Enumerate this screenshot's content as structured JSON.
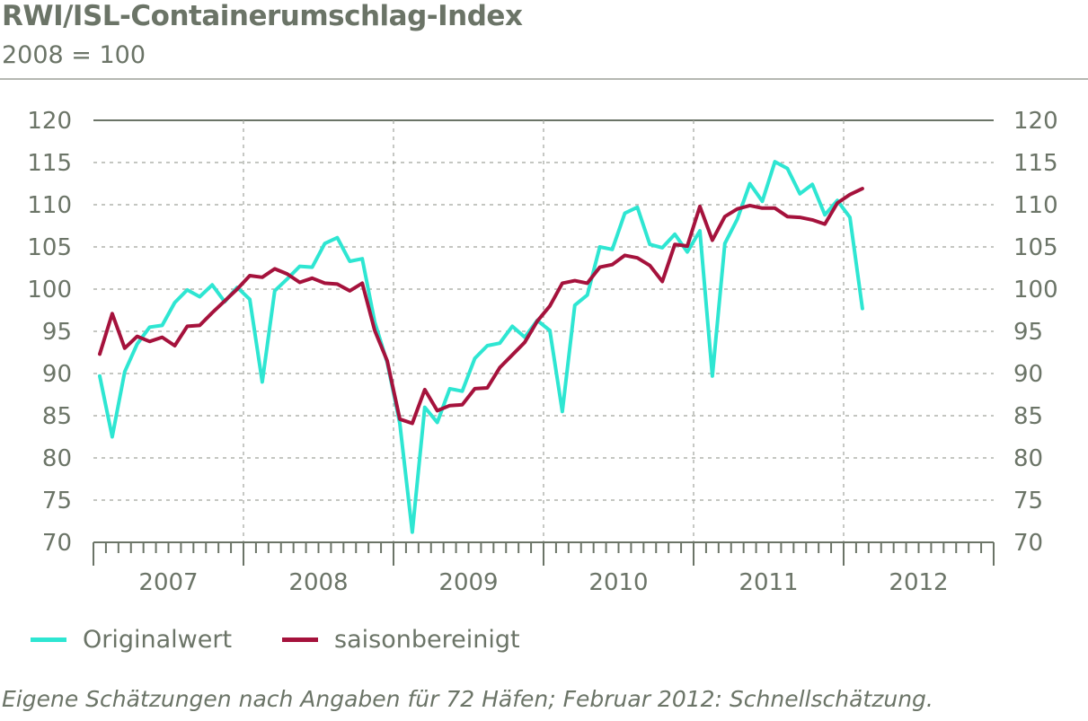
{
  "header": {
    "title": "RWI/ISL-Containerumschlag-Index",
    "subtitle": "2008 = 100"
  },
  "footnote": "Eigene Schätzungen nach Angaben für 72 Häfen; Februar 2012: Schnellschätzung.",
  "colors": {
    "original": "#2ee6d2",
    "saisonbereinigt": "#a5123c",
    "text": "#6b7467",
    "axis": "#6b7467",
    "grid": "#a0a39c"
  },
  "chart_data": {
    "type": "line",
    "title": "RWI/ISL-Containerumschlag-Index",
    "subtitle": "2008 = 100",
    "xlabel": "",
    "ylabel": "",
    "ylim": [
      70,
      120
    ],
    "yticks": [
      70,
      75,
      80,
      85,
      90,
      95,
      100,
      105,
      110,
      115,
      120
    ],
    "year_labels": [
      "2007",
      "2008",
      "2009",
      "2010",
      "2011",
      "2012"
    ],
    "x_range": [
      "2007-01",
      "2012-12"
    ],
    "x": [
      "2007-01",
      "2007-02",
      "2007-03",
      "2007-04",
      "2007-05",
      "2007-06",
      "2007-07",
      "2007-08",
      "2007-09",
      "2007-10",
      "2007-11",
      "2007-12",
      "2008-01",
      "2008-02",
      "2008-03",
      "2008-04",
      "2008-05",
      "2008-06",
      "2008-07",
      "2008-08",
      "2008-09",
      "2008-10",
      "2008-11",
      "2008-12",
      "2009-01",
      "2009-02",
      "2009-03",
      "2009-04",
      "2009-05",
      "2009-06",
      "2009-07",
      "2009-08",
      "2009-09",
      "2009-10",
      "2009-11",
      "2009-12",
      "2010-01",
      "2010-02",
      "2010-03",
      "2010-04",
      "2010-05",
      "2010-06",
      "2010-07",
      "2010-08",
      "2010-09",
      "2010-10",
      "2010-11",
      "2010-12",
      "2011-01",
      "2011-02",
      "2011-03",
      "2011-04",
      "2011-05",
      "2011-06",
      "2011-07",
      "2011-08",
      "2011-09",
      "2011-10",
      "2011-11",
      "2011-12",
      "2012-01",
      "2012-02"
    ],
    "grid": "dashed",
    "legend_position": "bottom-left",
    "series": [
      {
        "name": "Originalwert",
        "color": "#2ee6d2",
        "values": [
          89.7,
          82.5,
          90.2,
          93.5,
          95.5,
          95.7,
          98.4,
          99.9,
          99.1,
          100.5,
          98.5,
          100.2,
          98.8,
          89.0,
          99.8,
          101.2,
          102.7,
          102.6,
          105.4,
          106.1,
          103.3,
          103.6,
          96.1,
          91.3,
          84.1,
          71.2,
          86.0,
          84.2,
          88.2,
          87.9,
          91.8,
          93.3,
          93.6,
          95.6,
          94.3,
          96.3,
          95.1,
          85.5,
          98.1,
          99.3,
          105.0,
          104.7,
          109.0,
          109.7,
          105.3,
          104.9,
          106.5,
          104.4,
          106.9,
          89.7,
          105.4,
          108.3,
          112.5,
          110.4,
          115.1,
          114.3,
          111.3,
          112.4,
          108.8,
          110.5,
          108.5,
          97.7
        ]
      },
      {
        "name": "saisonbereinigt",
        "color": "#a5123c",
        "values": [
          92.3,
          97.1,
          93.0,
          94.4,
          93.8,
          94.3,
          93.3,
          95.6,
          95.7,
          97.2,
          98.6,
          100.0,
          101.6,
          101.4,
          102.4,
          101.8,
          100.8,
          101.3,
          100.7,
          100.6,
          99.8,
          100.7,
          95.1,
          91.5,
          84.6,
          84.1,
          88.1,
          85.6,
          86.2,
          86.3,
          88.2,
          88.3,
          90.7,
          92.2,
          93.7,
          96.2,
          98.0,
          100.7,
          101.0,
          100.7,
          102.6,
          102.9,
          104.0,
          103.7,
          102.8,
          100.9,
          105.3,
          105.1,
          109.8,
          105.8,
          108.6,
          109.5,
          109.9,
          109.6,
          109.6,
          108.6,
          108.5,
          108.2,
          107.7,
          110.2,
          111.2,
          111.9
        ]
      }
    ]
  }
}
